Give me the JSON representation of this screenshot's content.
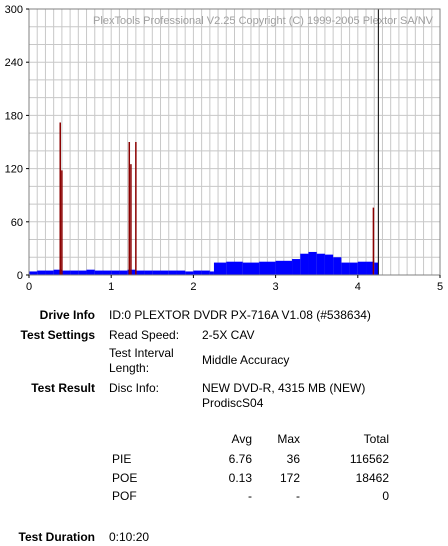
{
  "chart_data": {
    "type": "bar",
    "watermark": "PlexTools Professional V2.25 Copyright (C) 1999-2005 Plextor SA/NV",
    "xlim": [
      0,
      5
    ],
    "ylim": [
      0,
      300
    ],
    "x_ticks": [
      0,
      1,
      2,
      3,
      4,
      5
    ],
    "y_ticks": [
      0,
      60,
      120,
      180,
      240,
      300
    ],
    "grid": true,
    "colors": {
      "pie": "#0000ff",
      "poe": "#8b0000",
      "end_marker": "#000000",
      "grid": "#c8c8c8"
    },
    "series": [
      {
        "name": "PIE",
        "x": [
          0.0,
          0.1,
          0.2,
          0.3,
          0.4,
          0.5,
          0.6,
          0.7,
          0.8,
          0.9,
          1.0,
          1.1,
          1.2,
          1.3,
          1.4,
          1.5,
          1.6,
          1.7,
          1.8,
          1.9,
          2.0,
          2.1,
          2.2,
          2.25,
          2.4,
          2.6,
          2.8,
          3.0,
          3.2,
          3.3,
          3.4,
          3.5,
          3.6,
          3.7,
          3.8,
          3.9,
          4.0,
          4.1,
          4.2
        ],
        "values": [
          4,
          5,
          5,
          6,
          5,
          5,
          5,
          6,
          5,
          5,
          5,
          5,
          6,
          5,
          5,
          5,
          5,
          5,
          5,
          4,
          5,
          5,
          4,
          14,
          15,
          14,
          15,
          16,
          18,
          24,
          26,
          24,
          23,
          20,
          14,
          14,
          15,
          15,
          14
        ]
      },
      {
        "name": "POE",
        "x": [
          0.38,
          0.4,
          1.22,
          1.24,
          1.3,
          4.19
        ],
        "values": [
          172,
          118,
          150,
          125,
          150,
          76
        ]
      }
    ],
    "end_marker_x": 4.25
  },
  "report": {
    "drive_info_label": "Drive Info",
    "drive_info_value": "ID:0 PLEXTOR DVDR PX-716A V1.08 (#538634)",
    "test_settings_label": "Test Settings",
    "read_speed_label": "Read Speed:",
    "read_speed_value": "2-5X CAV",
    "interval_label_line1": "Test Interval",
    "interval_label_line2": "Length:",
    "interval_value": "Middle Accuracy",
    "test_result_label": "Test Result",
    "disc_info_label": "Disc Info:",
    "disc_info_line1": "NEW DVD-R, 4315 MB (NEW)",
    "disc_info_line2": "ProdiscS04",
    "table_headers": [
      "Avg",
      "Max",
      "Total"
    ],
    "rows": [
      {
        "name": "PIE",
        "avg": "6.76",
        "max": "36",
        "total": "116562"
      },
      {
        "name": "POE",
        "avg": "0.13",
        "max": "172",
        "total": "18462"
      },
      {
        "name": "POF",
        "avg": "-",
        "max": "-",
        "total": "0"
      }
    ],
    "duration_label": "Test Duration",
    "duration_value": "0:10:20"
  }
}
